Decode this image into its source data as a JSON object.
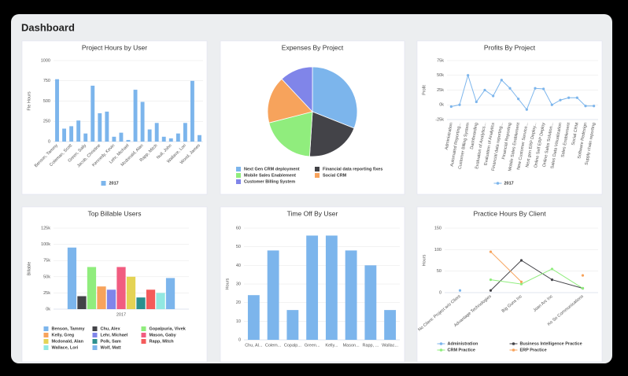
{
  "header": {
    "title": "Dashboard"
  },
  "chart_data": [
    {
      "type": "bar",
      "title": "Project Hours by User",
      "y_label": "Fte Hours",
      "categories": [
        "Benson, Tammy",
        null,
        "Coleman, Scott",
        null,
        "Green, Sally",
        null,
        "Jacob, Christine",
        null,
        "Kennedy, Kevin",
        null,
        "Lehr, Michael",
        null,
        "Mcdonald, Alan",
        null,
        "Rapp, Mitch",
        null,
        "Null, John",
        null,
        "Wallace, Lori",
        null,
        "Wood, James"
      ],
      "series": [
        {
          "name": "2017",
          "color": "#7cb5ec",
          "values": [
            770,
            160,
            190,
            260,
            100,
            690,
            350,
            370,
            60,
            110,
            20,
            640,
            490,
            150,
            230,
            60,
            40,
            100,
            230,
            750,
            80
          ]
        }
      ],
      "ylim": [
        0,
        1000
      ],
      "yticks": [
        0,
        250,
        500,
        750,
        1000
      ],
      "grid": true
    },
    {
      "type": "pie",
      "title": "Expenses By Project",
      "categories": [
        "Next Gen CRM deployment",
        "Financial data reporting fixes",
        "Mobile Sales Enablement",
        "Social CRM",
        "Customer Billing System"
      ],
      "values": [
        31,
        20,
        20,
        17,
        12
      ],
      "colors": [
        "#7cb5ec",
        "#434348",
        "#90ed7d",
        "#f7a35c",
        "#8085e9"
      ]
    },
    {
      "type": "line",
      "title": "Profits By Project",
      "y_label": "Profit",
      "categories": [
        "Administration",
        "Automated Reporting...",
        "Customer Billing System",
        "Dashboarding",
        "Evaluation of Analytics...",
        "Evaluation of Analytics",
        "Financial data reporting...",
        "Financial Reporting",
        "Mobile Sales Enablement",
        "New Customer Service...",
        "Next gen ERP Deploy...",
        "Online Self ERP Deploy",
        "Online Sales Solution...",
        "Sales Data Visualization",
        "Sales Enablement",
        "Social CRM",
        "Software Redesign",
        "Supply chain reporting"
      ],
      "series": [
        {
          "name": "2017",
          "color": "#7cb5ec",
          "values": [
            -3000,
            0,
            50000,
            5000,
            25000,
            15000,
            42000,
            28000,
            10000,
            -8000,
            28000,
            27000,
            0,
            8000,
            12000,
            12000,
            -2000,
            -2000
          ]
        }
      ],
      "ylim": [
        -25000,
        75000
      ],
      "yticks": [
        {
          "value": -25000,
          "label": "-25k"
        },
        {
          "value": 0,
          "label": "0k"
        },
        {
          "value": 25000,
          "label": "25k"
        },
        {
          "value": 50000,
          "label": "50k"
        },
        {
          "value": 75000,
          "label": "75k"
        }
      ],
      "grid": true
    },
    {
      "type": "bar",
      "title": "Top Billable Users",
      "y_label": "Billable",
      "categories": [
        "2017"
      ],
      "series": [
        {
          "name": "Benson, Tammy",
          "color": "#7cb5ec",
          "values": [
            95000
          ]
        },
        {
          "name": "Chu, Alex",
          "color": "#434348",
          "values": [
            20000
          ]
        },
        {
          "name": "Gopalpuria, Vivek",
          "color": "#90ed7d",
          "values": [
            65000
          ]
        },
        {
          "name": "Kelly, Greg",
          "color": "#f7a35c",
          "values": [
            35000
          ]
        },
        {
          "name": "Lehr, Michael",
          "color": "#8085e9",
          "values": [
            30000
          ]
        },
        {
          "name": "Mason, Gaby",
          "color": "#f15c80",
          "values": [
            65000
          ]
        },
        {
          "name": "Mcdonald, Alan",
          "color": "#e4d354",
          "values": [
            50000
          ]
        },
        {
          "name": "Polk, Sam",
          "color": "#2b908f",
          "values": [
            18000
          ]
        },
        {
          "name": "Rapp, Mitch",
          "color": "#f45b5b",
          "values": [
            30000
          ]
        },
        {
          "name": "Wallace, Lori",
          "color": "#91e8e1",
          "values": [
            25000
          ]
        },
        {
          "name": "Wolf, Matt",
          "color": "#7cb5ec",
          "values": [
            48000
          ]
        }
      ],
      "ylim": [
        0,
        125000
      ],
      "yticks": [
        {
          "value": 0,
          "label": "0k"
        },
        {
          "value": 25000,
          "label": "25k"
        },
        {
          "value": 50000,
          "label": "50k"
        },
        {
          "value": 75000,
          "label": "75k"
        },
        {
          "value": 100000,
          "label": "100k"
        },
        {
          "value": 125000,
          "label": "125k"
        }
      ],
      "grid": true
    },
    {
      "type": "bar",
      "title": "Time Off By User",
      "y_label": "Hours",
      "categories": [
        "Chu, Al...",
        "Colem...",
        "Copalp...",
        "Green...",
        "Kelly...",
        "Mason...",
        "Rapp, ...",
        "Wallac..."
      ],
      "values": [
        24,
        48,
        16,
        56,
        56,
        48,
        40,
        16
      ],
      "color": "#7cb5ec",
      "ylim": [
        0,
        60
      ],
      "yticks": [
        0,
        10,
        20,
        30,
        40,
        50,
        60
      ],
      "grid": true
    },
    {
      "type": "line",
      "title": "Practice Hours By Client",
      "y_label": "Hours",
      "categories": [
        "No Client: Project w/o Client",
        "Advantage Technologies",
        "Big Guns Inc",
        "Joan Arc Inc",
        "Ko So Communications"
      ],
      "series": [
        {
          "name": "Administration",
          "color": "#7cb5ec",
          "values": [
            5,
            null,
            null,
            null,
            null
          ]
        },
        {
          "name": "Business Intelligence Practice",
          "color": "#434348",
          "values": [
            null,
            5,
            75,
            30,
            10
          ]
        },
        {
          "name": "CRM Practice",
          "color": "#90ed7d",
          "values": [
            null,
            30,
            20,
            55,
            10
          ]
        },
        {
          "name": "ERP Practice",
          "color": "#f7a35c",
          "values": [
            null,
            95,
            25,
            null,
            40
          ]
        }
      ],
      "ylim": [
        0,
        150
      ],
      "yticks": [
        0,
        50,
        100,
        150
      ],
      "grid": true
    }
  ]
}
